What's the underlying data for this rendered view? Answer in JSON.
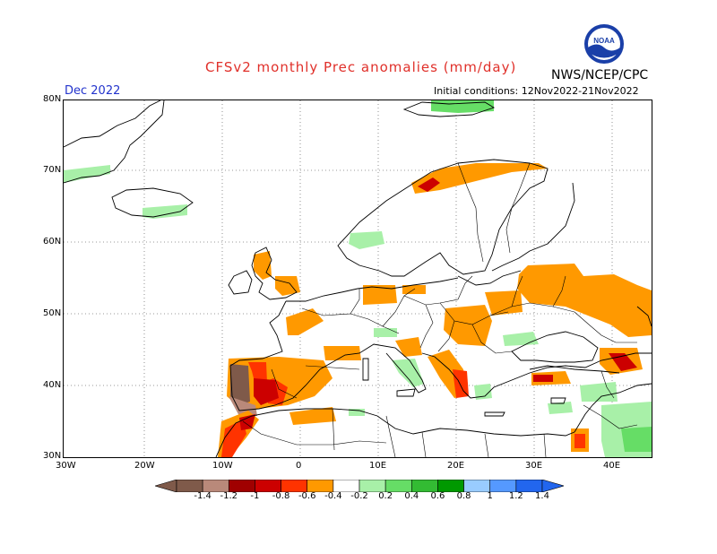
{
  "header": {
    "title": "CFSv2 monthly Prec anomalies (mm/day)",
    "agency": "NWS/NCEP/CPC",
    "month": "Dec 2022",
    "initial_conditions": "Initial conditions: 12Nov2022-21Nov2022",
    "logo_text": "NOAA"
  },
  "map": {
    "lat_labels": [
      "80N",
      "70N",
      "60N",
      "50N",
      "40N",
      "30N"
    ],
    "lon_labels": [
      "30W",
      "20W",
      "10W",
      "0",
      "10E",
      "20E",
      "30E",
      "40E"
    ]
  },
  "legend": {
    "labels": [
      "-1.4",
      "-1.2",
      "-1",
      "-0.8",
      "-0.6",
      "-0.4",
      "-0.2",
      "0.2",
      "0.4",
      "0.6",
      "0.8",
      "1",
      "1.2",
      "1.4"
    ],
    "colors": [
      "#7f5a4a",
      "#b9897a",
      "#a00000",
      "#cc0000",
      "#ff3300",
      "#ff9900",
      "#ffffff",
      "#a8f0a8",
      "#66dd66",
      "#33bb33",
      "#009900",
      "#99ccff",
      "#5599ff",
      "#2266ee"
    ]
  },
  "colors": {
    "title": "#e0302a",
    "month": "#2233cc",
    "dry_light": "#ff9900",
    "dry_mid": "#ff3300",
    "dry_strong": "#cc0000",
    "wet_light": "#a8f0a8",
    "wet_mid": "#66dd66"
  }
}
